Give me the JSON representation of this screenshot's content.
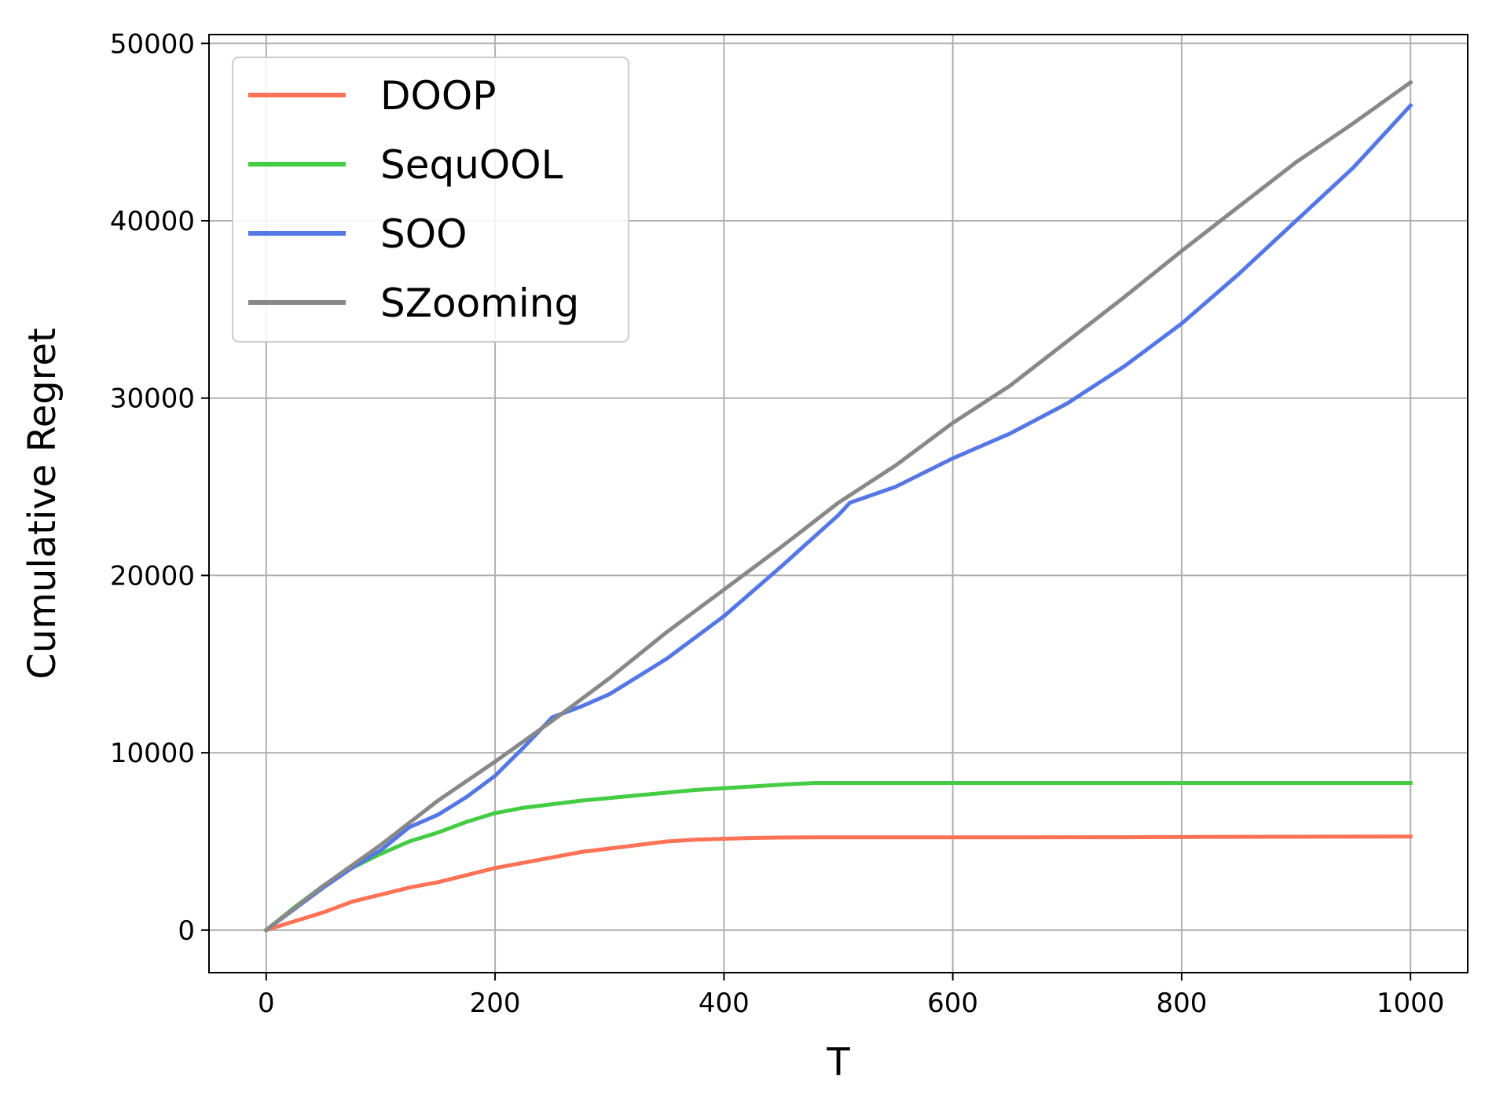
{
  "chart_data": {
    "type": "line",
    "xlabel": "T",
    "ylabel": "Cumulative Regret",
    "xlim": [
      -50,
      1050
    ],
    "ylim": [
      -2400,
      50500
    ],
    "xticks": [
      0,
      200,
      400,
      600,
      800,
      1000
    ],
    "yticks": [
      0,
      10000,
      20000,
      30000,
      40000,
      50000
    ],
    "grid": true,
    "legend_position": "upper-left",
    "series": [
      {
        "name": "DOOP",
        "color": "#ff7256",
        "x": [
          0,
          25,
          50,
          75,
          100,
          125,
          150,
          175,
          200,
          225,
          250,
          275,
          300,
          325,
          350,
          375,
          400,
          425,
          450,
          480,
          550,
          650,
          750,
          850,
          1000
        ],
        "y": [
          0,
          500,
          1000,
          1600,
          2000,
          2400,
          2700,
          3100,
          3500,
          3800,
          4100,
          4400,
          4600,
          4800,
          5000,
          5100,
          5150,
          5200,
          5220,
          5230,
          5230,
          5230,
          5240,
          5260,
          5280
        ]
      },
      {
        "name": "SequOOL",
        "color": "#44cc44",
        "x": [
          0,
          25,
          50,
          75,
          100,
          125,
          150,
          175,
          200,
          225,
          250,
          275,
          300,
          325,
          350,
          375,
          400,
          425,
          450,
          480,
          600,
          800,
          1000
        ],
        "y": [
          0,
          1300,
          2500,
          3500,
          4300,
          5000,
          5500,
          6100,
          6600,
          6900,
          7100,
          7300,
          7450,
          7600,
          7750,
          7900,
          8000,
          8100,
          8200,
          8300,
          8300,
          8300,
          8300
        ]
      },
      {
        "name": "SOO",
        "color": "#5577e6",
        "x": [
          0,
          25,
          50,
          75,
          100,
          125,
          150,
          175,
          200,
          225,
          250,
          275,
          300,
          350,
          400,
          450,
          500,
          510,
          550,
          600,
          650,
          700,
          750,
          800,
          850,
          900,
          950,
          1000
        ],
        "y": [
          0,
          1200,
          2400,
          3500,
          4500,
          5800,
          6500,
          7500,
          8700,
          10300,
          12000,
          12600,
          13300,
          15300,
          17700,
          20500,
          23400,
          24100,
          25000,
          26600,
          28000,
          29700,
          31800,
          34200,
          37000,
          40000,
          43000,
          46500
        ]
      },
      {
        "name": "SZooming",
        "color": "#888888",
        "x": [
          0,
          50,
          100,
          150,
          200,
          250,
          300,
          350,
          400,
          450,
          500,
          550,
          600,
          650,
          700,
          750,
          800,
          850,
          900,
          950,
          1000
        ],
        "y": [
          0,
          2500,
          4800,
          7300,
          9500,
          11800,
          14200,
          16800,
          19200,
          21600,
          24100,
          26200,
          28600,
          30700,
          33200,
          35700,
          38300,
          40800,
          43300,
          45500,
          47800
        ]
      }
    ]
  }
}
